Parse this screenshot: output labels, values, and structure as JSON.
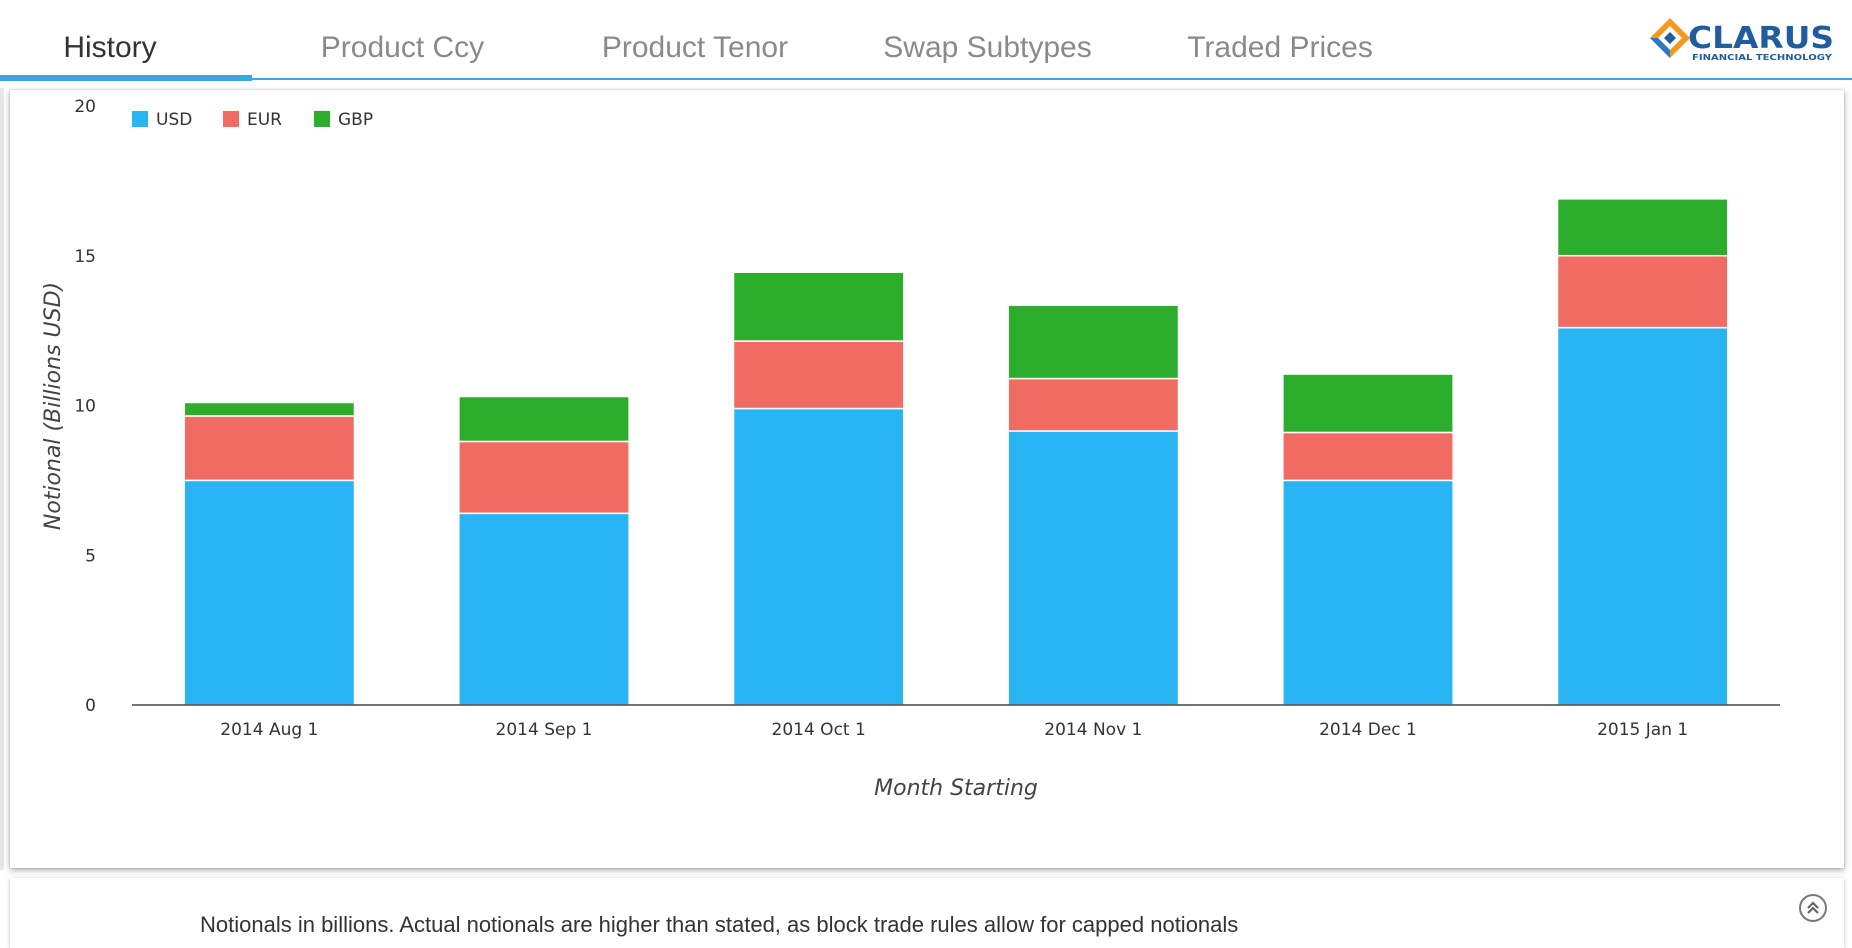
{
  "tabs": [
    {
      "label": "History",
      "active": true
    },
    {
      "label": "Product Ccy",
      "active": false
    },
    {
      "label": "Product Tenor",
      "active": false
    },
    {
      "label": "Swap Subtypes",
      "active": false
    },
    {
      "label": "Traded Prices",
      "active": false
    }
  ],
  "logo": {
    "name": "CLARUS",
    "tagline": "FINANCIAL TECHNOLOGY"
  },
  "colors": {
    "accent": "#3aa8de",
    "usd": "#29b4f3",
    "eur": "#f06c62",
    "gbp": "#2cae2c"
  },
  "chart_data": {
    "type": "bar",
    "stacked": true,
    "categories": [
      "2014 Aug 1",
      "2014 Sep 1",
      "2014 Oct 1",
      "2014 Nov 1",
      "2014 Dec 1",
      "2015 Jan 1"
    ],
    "series": [
      {
        "name": "USD",
        "color": "#29b4f3",
        "values": [
          7.5,
          6.4,
          9.9,
          9.15,
          7.5,
          12.6
        ]
      },
      {
        "name": "EUR",
        "color": "#f06c62",
        "values": [
          2.15,
          2.4,
          2.25,
          1.75,
          1.6,
          2.4
        ]
      },
      {
        "name": "GBP",
        "color": "#2cae2c",
        "values": [
          0.45,
          1.5,
          2.3,
          2.45,
          1.95,
          1.9
        ]
      }
    ],
    "xlabel": "Month Starting",
    "ylabel": "Notional (Billions USD)",
    "ylim": [
      0,
      20
    ],
    "yticks": [
      0,
      5,
      10,
      15,
      20
    ],
    "grid": false,
    "legend": "top-left"
  },
  "footer": {
    "note": "Notionals in billions. Actual notionals are higher than stated, as block trade rules allow for capped notionals"
  }
}
